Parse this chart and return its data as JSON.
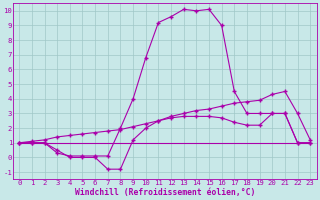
{
  "xlabel": "Windchill (Refroidissement éolien,°C)",
  "background_color": "#c8e8e8",
  "grid_color": "#a0c8c8",
  "line_color": "#aa00aa",
  "xlim": [
    -0.5,
    23.5
  ],
  "ylim": [
    -1.5,
    10.5
  ],
  "xticks": [
    0,
    1,
    2,
    3,
    4,
    5,
    6,
    7,
    8,
    9,
    10,
    11,
    12,
    13,
    14,
    15,
    16,
    17,
    18,
    19,
    20,
    21,
    22,
    23
  ],
  "yticks": [
    -1,
    0,
    1,
    2,
    3,
    4,
    5,
    6,
    7,
    8,
    9,
    10
  ],
  "series1_x": [
    0,
    1,
    2,
    3,
    4,
    5,
    6,
    7,
    8,
    9,
    10,
    11,
    12,
    13,
    14,
    15,
    16,
    17,
    18,
    19,
    20,
    21,
    22,
    23
  ],
  "series1_y": [
    1,
    1,
    1,
    0.3,
    0.1,
    0.1,
    0.1,
    0.1,
    2.0,
    4.0,
    6.8,
    9.2,
    9.6,
    10.1,
    10.0,
    10.1,
    9.0,
    4.5,
    3.0,
    3.0,
    3.0,
    3.0,
    1.0,
    1.0
  ],
  "series2_x": [
    0,
    1,
    2,
    3,
    4,
    5,
    6,
    7,
    8,
    9,
    10,
    11,
    12,
    13,
    14,
    15,
    16,
    17,
    18,
    19,
    20,
    21,
    22,
    23
  ],
  "series2_y": [
    1,
    1,
    1,
    0.5,
    0.0,
    0.0,
    0.0,
    -0.8,
    -0.8,
    1.2,
    2.0,
    2.5,
    2.7,
    2.8,
    2.8,
    2.8,
    2.7,
    2.4,
    2.2,
    2.2,
    3.0,
    3.0,
    1.0,
    1.0
  ],
  "series3_x": [
    0,
    23
  ],
  "series3_y": [
    1.0,
    1.0
  ],
  "series4_x": [
    0,
    1,
    2,
    3,
    4,
    5,
    6,
    7,
    8,
    9,
    10,
    11,
    12,
    13,
    14,
    15,
    16,
    17,
    18,
    19,
    20,
    21,
    22,
    23
  ],
  "series4_y": [
    1.0,
    1.1,
    1.2,
    1.4,
    1.5,
    1.6,
    1.7,
    1.8,
    1.9,
    2.1,
    2.3,
    2.5,
    2.8,
    3.0,
    3.2,
    3.3,
    3.5,
    3.7,
    3.8,
    3.9,
    4.3,
    4.5,
    3.0,
    1.2
  ],
  "marker": "+",
  "markersize": 3.5,
  "linewidth": 0.8,
  "tick_fontsize": 5.2,
  "xlabel_fontsize": 5.8
}
